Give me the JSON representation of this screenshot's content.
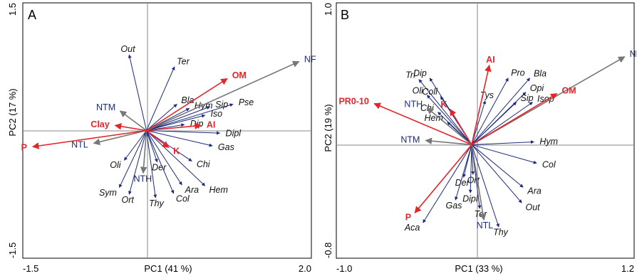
{
  "chart_data": [
    {
      "type": "scatter",
      "panel": "A",
      "xlabel": "PC1 (41 %)",
      "ylabel": "PC2 (17 %)",
      "xlim": [
        -1.5,
        2.0
      ],
      "ylim": [
        -1.5,
        1.5
      ],
      "x_tick_labels": [
        "-1.5",
        "2.0"
      ],
      "y_tick_labels": [
        "1.5",
        "-1.5"
      ],
      "species": [
        {
          "label": "Out",
          "x": -0.21,
          "y": 0.89
        },
        {
          "label": "Ter",
          "x": 0.34,
          "y": 0.75
        },
        {
          "label": "Bla",
          "x": 0.37,
          "y": 0.31
        },
        {
          "label": "Hym",
          "x": 0.52,
          "y": 0.26
        },
        {
          "label": "Sip",
          "x": 0.77,
          "y": 0.28
        },
        {
          "label": "Pse",
          "x": 1.05,
          "y": 0.31
        },
        {
          "label": "Iso",
          "x": 0.71,
          "y": 0.18
        },
        {
          "label": "Dip",
          "x": 0.46,
          "y": 0.07
        },
        {
          "label": "Dipl",
          "x": 0.89,
          "y": -0.03
        },
        {
          "label": "Gas",
          "x": 0.8,
          "y": -0.18
        },
        {
          "label": "Chi",
          "x": 0.55,
          "y": -0.36
        },
        {
          "label": "Der",
          "x": 0.13,
          "y": -0.37
        },
        {
          "label": "Ara",
          "x": 0.43,
          "y": -0.64
        },
        {
          "label": "Hem",
          "x": 0.71,
          "y": -0.65
        },
        {
          "label": "Col",
          "x": 0.33,
          "y": -0.74
        },
        {
          "label": "Thy",
          "x": 0.11,
          "y": -0.79
        },
        {
          "label": "Oli",
          "x": -0.27,
          "y": -0.35
        },
        {
          "label": "Sym",
          "x": -0.33,
          "y": -0.67
        },
        {
          "label": "Ort",
          "x": -0.21,
          "y": -0.75
        }
      ],
      "functional_groups": [
        {
          "label": "NF",
          "x": 1.85,
          "y": 0.81
        },
        {
          "label": "NTM",
          "x": -0.32,
          "y": 0.23
        },
        {
          "label": "NTL",
          "x": -0.64,
          "y": -0.15
        },
        {
          "label": "NTH",
          "x": -0.04,
          "y": -0.5
        }
      ],
      "environment": [
        {
          "label": "OM",
          "x": 0.98,
          "y": 0.61
        },
        {
          "label": "Clay",
          "x": -0.38,
          "y": 0.06
        },
        {
          "label": "P",
          "x": -1.38,
          "y": -0.19
        },
        {
          "label": "AI",
          "x": 0.66,
          "y": 0.06
        },
        {
          "label": "K",
          "x": 0.27,
          "y": -0.2
        }
      ]
    },
    {
      "type": "scatter",
      "panel": "B",
      "xlabel": "PC1 (33 %)",
      "ylabel": "PC2 (19 %)",
      "xlim": [
        -1.0,
        1.2
      ],
      "ylim": [
        -0.8,
        1.0
      ],
      "x_tick_labels": [
        "-1.0",
        "1.2"
      ],
      "y_tick_labels": [
        "1.0",
        "-0.8"
      ],
      "species": [
        {
          "label": "Tri",
          "x": -0.39,
          "y": 0.46
        },
        {
          "label": "Dip",
          "x": -0.31,
          "y": 0.47
        },
        {
          "label": "Oli",
          "x": -0.33,
          "y": 0.35
        },
        {
          "label": "Coll",
          "x": -0.23,
          "y": 0.34
        },
        {
          "label": "Chi",
          "x": -0.25,
          "y": 0.23
        },
        {
          "label": "Hem",
          "x": -0.18,
          "y": 0.16
        },
        {
          "label": "Tys",
          "x": 0.1,
          "y": 0.31
        },
        {
          "label": "Pro",
          "x": 0.27,
          "y": 0.47
        },
        {
          "label": "Bla",
          "x": 0.43,
          "y": 0.47
        },
        {
          "label": "Opi",
          "x": 0.4,
          "y": 0.37
        },
        {
          "label": "Sip",
          "x": 0.33,
          "y": 0.3
        },
        {
          "label": "Isop",
          "x": 0.45,
          "y": 0.3
        },
        {
          "label": "Hym",
          "x": 0.46,
          "y": 0.02
        },
        {
          "label": "Col",
          "x": 0.48,
          "y": -0.13
        },
        {
          "label": "Ara",
          "x": 0.38,
          "y": -0.3
        },
        {
          "label": "Out",
          "x": 0.37,
          "y": -0.41
        },
        {
          "label": "Der",
          "x": -0.06,
          "y": -0.23
        },
        {
          "label": "Ort",
          "x": 0.01,
          "y": -0.21
        },
        {
          "label": "Dipl",
          "x": -0.01,
          "y": -0.34
        },
        {
          "label": "Gas",
          "x": -0.12,
          "y": -0.39
        },
        {
          "label": "Ter",
          "x": 0.06,
          "y": -0.45
        },
        {
          "label": "Thy",
          "x": 0.2,
          "y": -0.58
        },
        {
          "label": "Aca",
          "x": -0.36,
          "y": -0.55
        }
      ],
      "functional_groups": [
        {
          "label": "NF",
          "x": 1.13,
          "y": 0.62
        },
        {
          "label": "NTH",
          "x": -0.33,
          "y": 0.26
        },
        {
          "label": "NTM",
          "x": -0.34,
          "y": 0.03
        },
        {
          "label": "NTL",
          "x": 0.09,
          "y": -0.53
        }
      ],
      "environment": [
        {
          "label": "OM",
          "x": 0.63,
          "y": 0.36
        },
        {
          "label": "PR0-10",
          "x": -0.72,
          "y": 0.29
        },
        {
          "label": "AI",
          "x": 0.13,
          "y": 0.56
        },
        {
          "label": "K",
          "x": -0.16,
          "y": 0.25
        },
        {
          "label": "P",
          "x": -0.42,
          "y": -0.48
        }
      ]
    }
  ],
  "colors": {
    "species_arrow": "#1c2a7a",
    "functional_arrow": "#777777",
    "environment_arrow": "#e3262a",
    "species_text": "#111111",
    "functional_text": "#1c2a7a",
    "environment_text": "#e3262a",
    "zero_line": "#8a8a8a"
  }
}
